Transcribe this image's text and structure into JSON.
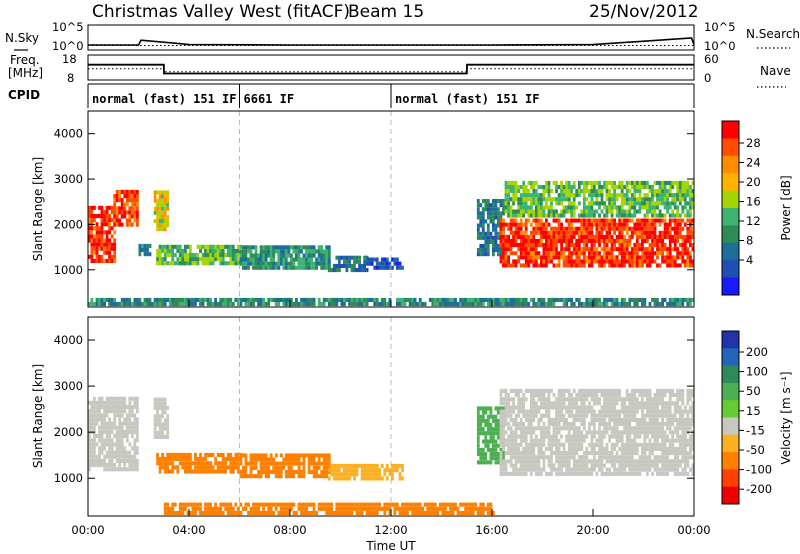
{
  "header": {
    "station": "Christmas Valley West (fitACF)",
    "beam": "Beam 15",
    "date": "25/Nov/2012"
  },
  "left_labels": {
    "nsky": "N.Sky",
    "freq_line1": "Freq.",
    "freq_line2": "[MHz]",
    "cpid": "CPID"
  },
  "right_labels": {
    "nsearch": "N.Search",
    "nave": "Nave"
  },
  "colorbar_power": {
    "label": "Power [dB]",
    "ticks": [
      "28",
      "24",
      "20",
      "16",
      "12",
      "8",
      "4"
    ],
    "colors": [
      "#ff0000",
      "#ff4d00",
      "#ff8c00",
      "#ffb300",
      "#a6d400",
      "#3cb371",
      "#2e8b57",
      "#1e6e9c",
      "#1f4fb4",
      "#1a1aff"
    ]
  },
  "colorbar_velocity": {
    "label": "Velocity [m s⁻¹]",
    "ticks": [
      "200",
      "100",
      "50",
      "15",
      "-15",
      "-50",
      "-100",
      "-200"
    ],
    "colors": [
      "#2233aa",
      "#2266bb",
      "#2e8b57",
      "#4caf50",
      "#66cc33",
      "#c8c8c0",
      "#ffb020",
      "#ff8000",
      "#ff4000",
      "#ee0000"
    ]
  },
  "xaxis": {
    "label": "Time UT",
    "ticks": [
      "00:00",
      "04:00",
      "08:00",
      "12:00",
      "16:00",
      "20:00",
      "00:00"
    ]
  },
  "chart_data": [
    {
      "type": "line",
      "panel": "noise",
      "left_label": "N.Sky",
      "right_label": "N.Search",
      "y_ticks_left": [
        "10^5",
        "10^0"
      ],
      "y_ticks_right": [
        "10^5",
        "10^0"
      ],
      "x_hours": [
        0,
        2,
        2.1,
        3.5,
        4,
        8,
        12,
        16,
        20,
        23.9,
        24
      ],
      "nsky_log10": [
        0.9,
        0.9,
        2.0,
        1.3,
        1.0,
        0.9,
        0.9,
        0.9,
        1.0,
        2.5,
        1.0
      ],
      "nsearch_log10": [
        0.8,
        0.8,
        0.8,
        0.8,
        0.8,
        0.8,
        0.8,
        0.8,
        0.8,
        0.8,
        0.8
      ]
    },
    {
      "type": "line",
      "panel": "frequency",
      "left_label": "Freq. [MHz]",
      "right_label": "Nave",
      "y_ticks_left": [
        "18",
        "8"
      ],
      "y_ticks_right": [
        "60",
        "0"
      ],
      "x_hours": [
        0,
        3,
        3.01,
        15,
        15.01,
        24
      ],
      "freq_mhz": [
        14.5,
        14.5,
        10.5,
        10.5,
        14.5,
        14.5
      ],
      "nave_x_hours": [
        0,
        3,
        3.01,
        15,
        15.01,
        24
      ],
      "nave": [
        28,
        28,
        20,
        20,
        28,
        28
      ]
    },
    {
      "type": "table",
      "panel": "cpid",
      "segments": [
        {
          "start_hour": 0,
          "end_hour": 6,
          "label": "normal (fast) 151 IF"
        },
        {
          "start_hour": 6,
          "end_hour": 12,
          "label": "6661 IF"
        },
        {
          "start_hour": 12,
          "end_hour": 24,
          "label": "normal (fast) 151 IF"
        }
      ]
    },
    {
      "type": "heatmap",
      "panel": "power",
      "ylabel": "Slant Range [km]",
      "xlabel": "",
      "xlim_hours": [
        0,
        24
      ],
      "ylim_km": [
        180,
        4500
      ],
      "y_ticks": [
        1000,
        2000,
        3000,
        4000
      ],
      "units": "dB",
      "regions": [
        {
          "t0": 0.0,
          "t1": 1.0,
          "r0": 1150,
          "r1": 2400,
          "value": 27
        },
        {
          "t0": 1.0,
          "t1": 2.0,
          "r0": 1950,
          "r1": 2750,
          "value": 26
        },
        {
          "t0": 2.0,
          "t1": 2.5,
          "r0": 1300,
          "r1": 1500,
          "value": 10
        },
        {
          "t0": 2.6,
          "t1": 3.2,
          "r0": 1850,
          "r1": 2700,
          "value": 18
        },
        {
          "t0": 2.7,
          "t1": 6.0,
          "r0": 1100,
          "r1": 1550,
          "value": 14
        },
        {
          "t0": 6.0,
          "t1": 9.5,
          "r0": 1000,
          "r1": 1500,
          "value": 11
        },
        {
          "t0": 9.5,
          "t1": 11.0,
          "r0": 950,
          "r1": 1300,
          "value": 8
        },
        {
          "t0": 11.0,
          "t1": 12.4,
          "r0": 1000,
          "r1": 1250,
          "value": 5
        },
        {
          "t0": 15.4,
          "t1": 16.5,
          "r0": 1300,
          "r1": 2500,
          "value": 8
        },
        {
          "t0": 16.3,
          "t1": 24.0,
          "r0": 1050,
          "r1": 2100,
          "value": 27
        },
        {
          "t0": 16.5,
          "t1": 24.0,
          "r0": 2150,
          "r1": 2900,
          "value": 14
        },
        {
          "t0": 0.0,
          "t1": 24.0,
          "r0": 200,
          "r1": 380,
          "value": 10
        }
      ]
    },
    {
      "type": "heatmap",
      "panel": "velocity",
      "ylabel": "Slant Range [km]",
      "xlabel": "Time UT",
      "xlim_hours": [
        0,
        24
      ],
      "ylim_km": [
        180,
        4500
      ],
      "y_ticks": [
        1000,
        2000,
        3000,
        4000
      ],
      "units": "m s-1",
      "regions": [
        {
          "t0": 0.0,
          "t1": 2.0,
          "r0": 1150,
          "r1": 2750,
          "value": 0
        },
        {
          "t0": 2.6,
          "t1": 3.2,
          "r0": 1850,
          "r1": 2700,
          "value": 0
        },
        {
          "t0": 2.7,
          "t1": 6.0,
          "r0": 1100,
          "r1": 1550,
          "value": -60
        },
        {
          "t0": 6.0,
          "t1": 9.5,
          "r0": 1000,
          "r1": 1500,
          "value": -60
        },
        {
          "t0": 9.5,
          "t1": 12.4,
          "r0": 950,
          "r1": 1300,
          "value": -40
        },
        {
          "t0": 15.4,
          "t1": 16.5,
          "r0": 1300,
          "r1": 2500,
          "value": 40
        },
        {
          "t0": 16.3,
          "t1": 24.0,
          "r0": 1050,
          "r1": 2900,
          "value": 0
        },
        {
          "t0": 3.0,
          "t1": 16.0,
          "r0": 200,
          "r1": 450,
          "value": -60
        }
      ]
    }
  ]
}
